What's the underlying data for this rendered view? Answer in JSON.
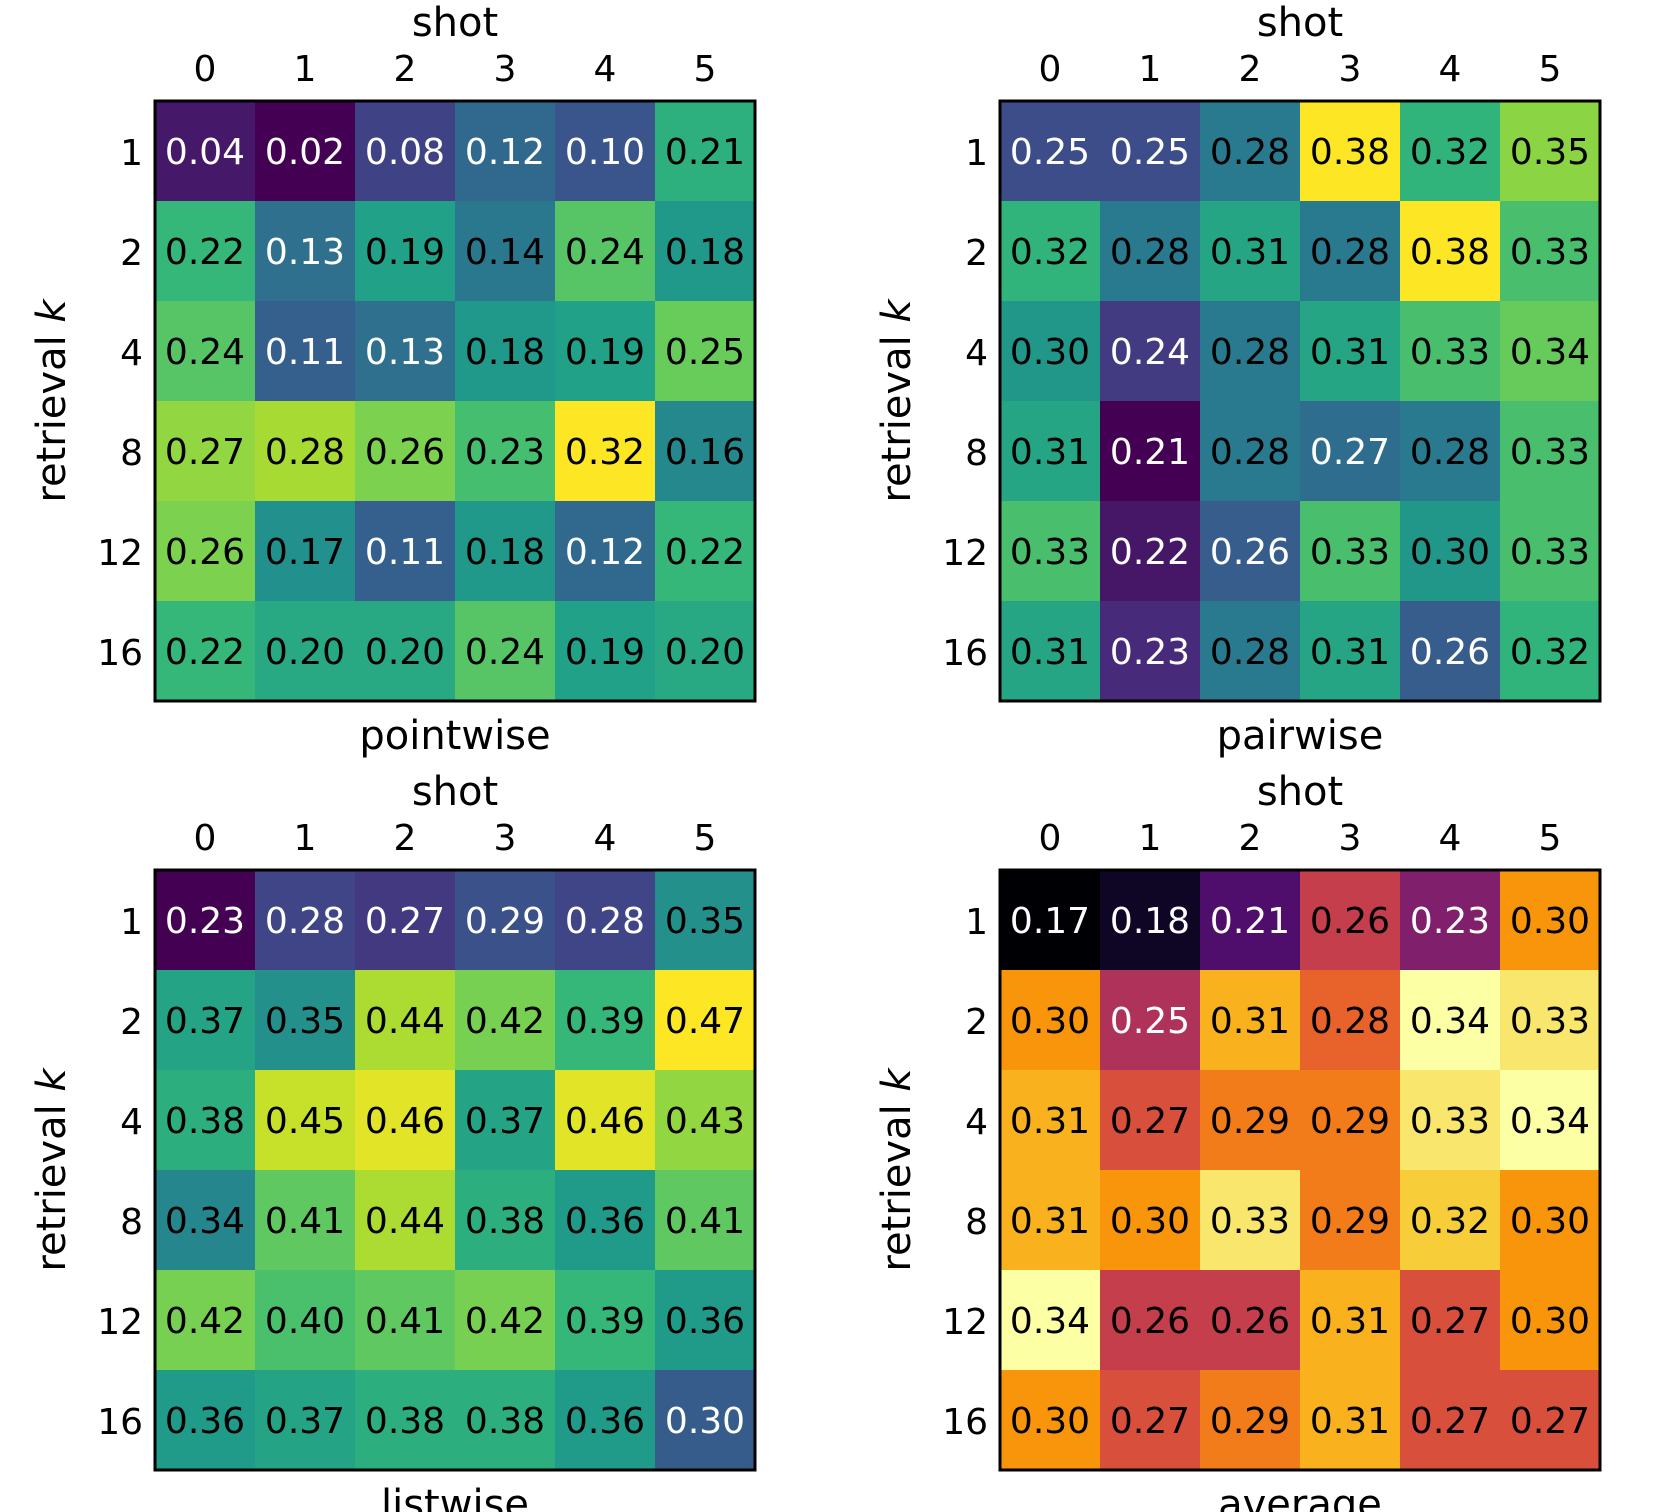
{
  "chart_data": [
    {
      "type": "heatmap",
      "title": "pointwise",
      "xlabel": "shot",
      "ylabel": "retrieval k",
      "x_categories": [
        "0",
        "1",
        "2",
        "3",
        "4",
        "5"
      ],
      "y_categories": [
        "1",
        "2",
        "4",
        "8",
        "12",
        "16"
      ],
      "colormap": "viridis",
      "values": [
        [
          0.04,
          0.02,
          0.08,
          0.12,
          0.1,
          0.21
        ],
        [
          0.22,
          0.13,
          0.19,
          0.14,
          0.24,
          0.18
        ],
        [
          0.24,
          0.11,
          0.13,
          0.18,
          0.19,
          0.25
        ],
        [
          0.27,
          0.28,
          0.26,
          0.23,
          0.32,
          0.16
        ],
        [
          0.26,
          0.17,
          0.11,
          0.18,
          0.12,
          0.22
        ],
        [
          0.22,
          0.2,
          0.2,
          0.24,
          0.19,
          0.2
        ]
      ]
    },
    {
      "type": "heatmap",
      "title": "pairwise",
      "xlabel": "shot",
      "ylabel": "retrieval k",
      "x_categories": [
        "0",
        "1",
        "2",
        "3",
        "4",
        "5"
      ],
      "y_categories": [
        "1",
        "2",
        "4",
        "8",
        "12",
        "16"
      ],
      "colormap": "viridis",
      "values": [
        [
          0.25,
          0.25,
          0.28,
          0.38,
          0.32,
          0.35
        ],
        [
          0.32,
          0.28,
          0.31,
          0.28,
          0.38,
          0.33
        ],
        [
          0.3,
          0.24,
          0.28,
          0.31,
          0.33,
          0.34
        ],
        [
          0.31,
          0.21,
          0.28,
          0.27,
          0.28,
          0.33
        ],
        [
          0.33,
          0.22,
          0.26,
          0.33,
          0.3,
          0.33
        ],
        [
          0.31,
          0.23,
          0.28,
          0.31,
          0.26,
          0.32
        ]
      ]
    },
    {
      "type": "heatmap",
      "title": "listwise",
      "xlabel": "shot",
      "ylabel": "retrieval k",
      "x_categories": [
        "0",
        "1",
        "2",
        "3",
        "4",
        "5"
      ],
      "y_categories": [
        "1",
        "2",
        "4",
        "8",
        "12",
        "16"
      ],
      "colormap": "viridis",
      "values": [
        [
          0.23,
          0.28,
          0.27,
          0.29,
          0.28,
          0.35
        ],
        [
          0.37,
          0.35,
          0.44,
          0.42,
          0.39,
          0.47
        ],
        [
          0.38,
          0.45,
          0.46,
          0.37,
          0.46,
          0.43
        ],
        [
          0.34,
          0.41,
          0.44,
          0.38,
          0.36,
          0.41
        ],
        [
          0.42,
          0.4,
          0.41,
          0.42,
          0.39,
          0.36
        ],
        [
          0.36,
          0.37,
          0.38,
          0.38,
          0.36,
          0.3
        ]
      ]
    },
    {
      "type": "heatmap",
      "title": "average",
      "xlabel": "shot",
      "ylabel": "retrieval k",
      "x_categories": [
        "0",
        "1",
        "2",
        "3",
        "4",
        "5"
      ],
      "y_categories": [
        "1",
        "2",
        "4",
        "8",
        "12",
        "16"
      ],
      "colormap": "inferno",
      "values": [
        [
          0.17,
          0.18,
          0.21,
          0.26,
          0.23,
          0.3
        ],
        [
          0.3,
          0.25,
          0.31,
          0.28,
          0.34,
          0.33
        ],
        [
          0.31,
          0.27,
          0.29,
          0.29,
          0.33,
          0.34
        ],
        [
          0.31,
          0.3,
          0.33,
          0.29,
          0.32,
          0.3
        ],
        [
          0.34,
          0.26,
          0.26,
          0.31,
          0.27,
          0.3
        ],
        [
          0.3,
          0.27,
          0.29,
          0.31,
          0.27,
          0.27
        ]
      ]
    }
  ],
  "colors": {
    "frame": "#000000",
    "label_light": "#ffffff",
    "label_dark": "#000000"
  }
}
